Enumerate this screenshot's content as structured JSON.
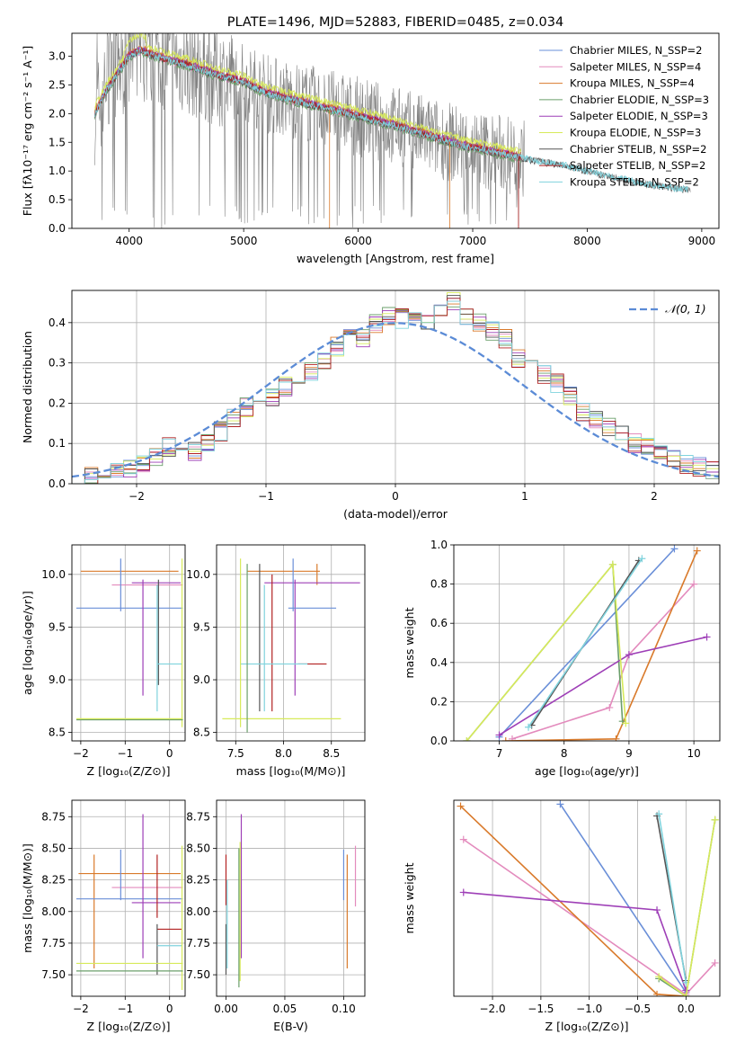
{
  "colors": {
    "chabrier_miles": "#6a8fd8",
    "salpeter_miles": "#e38bbd",
    "kroupa_miles": "#d97a2b",
    "chabrier_elodie": "#6b9f6b",
    "salpeter_elodie": "#9e3fb7",
    "kroupa_elodie": "#d7ea5a",
    "chabrier_stelib": "#555555",
    "salpeter_stelib": "#b22222",
    "kroupa_stelib": "#7fd3dd",
    "gaussian": "#5b8bd6",
    "data": "#808080"
  },
  "chart_data": [
    {
      "type": "line",
      "title": "PLATE=1496, MJD=52883, FIBERID=0485, z=0.034",
      "xlabel": "wavelength [Angstrom, rest frame]",
      "ylabel": "Flux [fλ10⁻¹⁷ erg cm⁻² s⁻¹ A⁻¹]",
      "xlim": [
        3500,
        9150
      ],
      "ylim": [
        0,
        3.4
      ],
      "xticks": [
        4000,
        5000,
        6000,
        7000,
        8000,
        9000
      ],
      "yticks": [
        0.0,
        0.5,
        1.0,
        1.5,
        2.0,
        2.5,
        3.0
      ],
      "grid": false,
      "legend_position": "top-right",
      "legend": [
        "Chabrier MILES, N_SSP=2",
        "Salpeter MILES, N_SSP=4",
        "Kroupa MILES, N_SSP=4",
        "Chabrier ELODIE, N_SSP=3",
        "Salpeter ELODIE, N_SSP=3",
        "Kroupa ELODIE, N_SSP=3",
        "Chabrier STELIB, N_SSP=2",
        "Salpeter STELIB, N_SSP=2",
        "Kroupa STELIB, N_SSP=2"
      ],
      "model_continuum": {
        "x": [
          3700,
          3800,
          3900,
          4000,
          4100,
          4300,
          4500,
          4800,
          5000,
          5200,
          5500,
          5800,
          6000,
          6300,
          6600,
          6900,
          7200,
          7500,
          7800,
          8100,
          8400,
          8700,
          8900
        ],
        "y": [
          2.0,
          2.4,
          2.7,
          3.0,
          3.1,
          2.95,
          2.85,
          2.65,
          2.55,
          2.35,
          2.2,
          2.05,
          1.95,
          1.8,
          1.62,
          1.45,
          1.32,
          1.2,
          1.1,
          0.95,
          0.82,
          0.72,
          0.67
        ]
      }
    },
    {
      "type": "line",
      "xlabel": "(data-model)/error",
      "ylabel": "Normed distribution",
      "xlim": [
        -2.5,
        2.5
      ],
      "ylim": [
        0,
        0.48
      ],
      "xticks": [
        -2,
        -1,
        0,
        1,
        2
      ],
      "yticks": [
        0.0,
        0.1,
        0.2,
        0.3,
        0.4
      ],
      "grid": true,
      "legend_position": "top-right",
      "legend": [
        "𝒩(0, 1)"
      ],
      "hist_bin_width": 0.1,
      "hist_start": -2.5,
      "hist_values": [
        0.02,
        0.02,
        0.03,
        0.04,
        0.04,
        0.05,
        0.07,
        0.09,
        0.09,
        0.08,
        0.1,
        0.13,
        0.16,
        0.19,
        0.2,
        0.21,
        0.24,
        0.27,
        0.28,
        0.31,
        0.34,
        0.38,
        0.36,
        0.4,
        0.42,
        0.41,
        0.43,
        0.4,
        0.44,
        0.45,
        0.42,
        0.4,
        0.38,
        0.36,
        0.31,
        0.3,
        0.27,
        0.25,
        0.22,
        0.18,
        0.16,
        0.14,
        0.12,
        0.1,
        0.09,
        0.07,
        0.06,
        0.05,
        0.04,
        0.03
      ]
    },
    {
      "type": "scatter",
      "xlabel": "Z [log₁₀(Z/Z⊙)]",
      "ylabel": "age  [log₁₀(age/yr)]",
      "xlim": [
        -2.2,
        0.35
      ],
      "ylim": [
        8.42,
        10.28
      ],
      "xticks": [
        -2,
        -1,
        0
      ],
      "yticks": [
        8.5,
        9.0,
        9.5,
        10.0
      ],
      "grid": true,
      "points": [
        {
          "model": "kroupa_miles",
          "x": -0.9,
          "xerr": 1.1,
          "y": 10.03,
          "yerr": 0.0
        },
        {
          "model": "salpeter_miles",
          "x": -0.5,
          "xerr": 0.8,
          "y": 9.9,
          "yerr": 0.0
        },
        {
          "model": "chabrier_miles",
          "x": -0.9,
          "xerr": 1.2,
          "y": 9.68,
          "yerr": 0.0
        },
        {
          "model": "chabrier_miles",
          "x": -1.1,
          "xerr": 0.0,
          "y": 9.9,
          "yerr": 0.25
        },
        {
          "model": "salpeter_elodie",
          "x": -0.3,
          "xerr": 0.55,
          "y": 9.92,
          "yerr": 0.0
        },
        {
          "model": "salpeter_elodie",
          "x": -0.6,
          "xerr": 0.0,
          "y": 9.4,
          "yerr": 0.55
        },
        {
          "model": "chabrier_stelib",
          "x": -0.25,
          "xerr": 0.0,
          "y": 9.45,
          "yerr": 0.5
        },
        {
          "model": "kroupa_stelib",
          "x": 0.0,
          "xerr": 0.28,
          "y": 9.15,
          "yerr": 0.0
        },
        {
          "model": "kroupa_stelib",
          "x": -0.28,
          "xerr": 0.0,
          "y": 9.3,
          "yerr": 0.6
        },
        {
          "model": "kroupa_elodie",
          "x": 0.28,
          "xerr": 0.0,
          "y": 9.35,
          "yerr": 0.8
        },
        {
          "model": "kroupa_elodie",
          "x": -0.9,
          "xerr": 1.2,
          "y": 8.63,
          "yerr": 0.0
        },
        {
          "model": "chabrier_elodie",
          "x": -0.9,
          "xerr": 1.2,
          "y": 8.62,
          "yerr": 0.0
        }
      ]
    },
    {
      "type": "scatter",
      "xlabel": "mass [log₁₀(M/M⊙)]",
      "xlim": [
        7.3,
        8.85
      ],
      "ylim": [
        8.42,
        10.28
      ],
      "xticks": [
        7.5,
        8.0,
        8.5
      ],
      "yticks": [
        8.5,
        9.0,
        9.5,
        10.0
      ],
      "grid": true,
      "points": [
        {
          "model": "kroupa_miles",
          "x": 8.0,
          "xerr": 0.38,
          "y": 10.03,
          "yerr": 0.0
        },
        {
          "model": "kroupa_miles",
          "x": 8.35,
          "xerr": 0.0,
          "y": 10.0,
          "yerr": 0.1
        },
        {
          "model": "salpeter_elodie",
          "x": 8.3,
          "xerr": 0.5,
          "y": 9.92,
          "yerr": 0.0
        },
        {
          "model": "salpeter_elodie",
          "x": 8.12,
          "xerr": 0.0,
          "y": 9.4,
          "yerr": 0.55
        },
        {
          "model": "chabrier_miles",
          "x": 8.3,
          "xerr": 0.25,
          "y": 9.68,
          "yerr": 0.0
        },
        {
          "model": "chabrier_miles",
          "x": 8.1,
          "xerr": 0.0,
          "y": 9.9,
          "yerr": 0.25
        },
        {
          "model": "salpeter_stelib",
          "x": 8.3,
          "xerr": 0.15,
          "y": 9.15,
          "yerr": 0.0
        },
        {
          "model": "salpeter_stelib",
          "x": 7.88,
          "xerr": 0.0,
          "y": 9.35,
          "yerr": 0.65
        },
        {
          "model": "chabrier_stelib",
          "x": 7.75,
          "xerr": 0.0,
          "y": 9.4,
          "yerr": 0.7
        },
        {
          "model": "kroupa_stelib",
          "x": 7.9,
          "xerr": 0.35,
          "y": 9.15,
          "yerr": 0.0
        },
        {
          "model": "kroupa_stelib",
          "x": 7.8,
          "xerr": 0.0,
          "y": 9.3,
          "yerr": 0.6
        },
        {
          "model": "kroupa_elodie",
          "x": 7.55,
          "xerr": 0.0,
          "y": 9.35,
          "yerr": 0.8
        },
        {
          "model": "kroupa_elodie",
          "x": 7.98,
          "xerr": 0.62,
          "y": 8.63,
          "yerr": 0.0
        },
        {
          "model": "chabrier_elodie",
          "x": 7.62,
          "xerr": 0.0,
          "y": 9.3,
          "yerr": 0.8
        }
      ]
    },
    {
      "type": "line",
      "xlabel": "age  [log₁₀(age/yr)]",
      "ylabel": "mass weight",
      "xlim": [
        6.3,
        10.4
      ],
      "ylim": [
        0,
        1.0
      ],
      "xticks": [
        7,
        8,
        9,
        10
      ],
      "yticks": [
        0.0,
        0.2,
        0.4,
        0.6,
        0.8,
        1.0
      ],
      "grid": true,
      "series": [
        {
          "model": "chabrier_miles",
          "x": [
            7.0,
            9.7
          ],
          "y": [
            0.02,
            0.98
          ]
        },
        {
          "model": "salpeter_miles",
          "x": [
            7.2,
            8.7,
            9.0,
            10.0
          ],
          "y": [
            0.01,
            0.17,
            0.44,
            0.8
          ]
        },
        {
          "model": "kroupa_miles",
          "x": [
            7.1,
            8.8,
            10.05
          ],
          "y": [
            0.0,
            0.01,
            0.97
          ]
        },
        {
          "model": "chabrier_elodie",
          "x": [
            6.5,
            8.75,
            8.9
          ],
          "y": [
            0.0,
            0.9,
            0.1
          ]
        },
        {
          "model": "salpeter_elodie",
          "x": [
            7.0,
            9.0,
            10.2
          ],
          "y": [
            0.03,
            0.44,
            0.53
          ]
        },
        {
          "model": "kroupa_elodie",
          "x": [
            6.5,
            8.75,
            8.95
          ],
          "y": [
            0.0,
            0.9,
            0.09
          ]
        },
        {
          "model": "chabrier_stelib",
          "x": [
            7.5,
            9.15
          ],
          "y": [
            0.08,
            0.92
          ]
        },
        {
          "model": "kroupa_stelib",
          "x": [
            7.45,
            9.2
          ],
          "y": [
            0.07,
            0.93
          ]
        }
      ]
    },
    {
      "type": "scatter",
      "xlabel": "Z [log₁₀(Z/Z⊙)]",
      "ylabel": "mass [log₁₀(M/M⊙)]",
      "xlim": [
        -2.2,
        0.35
      ],
      "ylim": [
        7.33,
        8.88
      ],
      "xticks": [
        -2,
        -1,
        0
      ],
      "yticks": [
        7.5,
        7.75,
        8.0,
        8.25,
        8.5,
        8.75
      ],
      "grid": true,
      "points": [
        {
          "model": "kroupa_miles",
          "x": -0.9,
          "xerr": 1.15,
          "y": 8.3,
          "yerr": 0.0
        },
        {
          "model": "kroupa_miles",
          "x": -1.7,
          "xerr": 0.0,
          "y": 8.0,
          "yerr": 0.45
        },
        {
          "model": "salpeter_miles",
          "x": -0.5,
          "xerr": 0.8,
          "y": 8.19,
          "yerr": 0.0
        },
        {
          "model": "chabrier_miles",
          "x": -0.9,
          "xerr": 1.2,
          "y": 8.1,
          "yerr": 0.0
        },
        {
          "model": "chabrier_miles",
          "x": -1.1,
          "xerr": 0.0,
          "y": 8.29,
          "yerr": 0.2
        },
        {
          "model": "salpeter_elodie",
          "x": -0.3,
          "xerr": 0.55,
          "y": 8.07,
          "yerr": 0.0
        },
        {
          "model": "salpeter_elodie",
          "x": -0.6,
          "xerr": 0.0,
          "y": 8.2,
          "yerr": 0.57
        },
        {
          "model": "salpeter_stelib",
          "x": 0.0,
          "xerr": 0.28,
          "y": 7.86,
          "yerr": 0.0
        },
        {
          "model": "salpeter_stelib",
          "x": -0.28,
          "xerr": 0.0,
          "y": 8.2,
          "yerr": 0.25
        },
        {
          "model": "chabrier_stelib",
          "x": -0.28,
          "xerr": 0.0,
          "y": 7.7,
          "yerr": 0.2
        },
        {
          "model": "kroupa_stelib",
          "x": 0.0,
          "xerr": 0.28,
          "y": 7.73,
          "yerr": 0.0
        },
        {
          "model": "kroupa_elodie",
          "x": 0.28,
          "xerr": 0.0,
          "y": 7.95,
          "yerr": 0.57
        },
        {
          "model": "kroupa_elodie",
          "x": -0.9,
          "xerr": 1.2,
          "y": 7.59,
          "yerr": 0.0
        },
        {
          "model": "chabrier_elodie",
          "x": -0.9,
          "xerr": 1.2,
          "y": 7.53,
          "yerr": 0.0
        }
      ]
    },
    {
      "type": "scatter",
      "xlabel": "E(B-V)",
      "xlim": [
        -0.008,
        0.118
      ],
      "ylim": [
        7.33,
        8.88
      ],
      "xticks": [
        0.0,
        0.05,
        0.1
      ],
      "yticks": [
        7.5,
        7.75,
        8.0,
        8.25,
        8.5,
        8.75
      ],
      "grid": true,
      "points": [
        {
          "model": "salpeter_stelib",
          "x": 0.0,
          "xerr": 0.0,
          "y": 8.25,
          "yerr": 0.2
        },
        {
          "model": "chabrier_stelib",
          "x": 0.0,
          "xerr": 0.0,
          "y": 7.7,
          "yerr": 0.2
        },
        {
          "model": "kroupa_stelib",
          "x": 0.001,
          "xerr": 0.0,
          "y": 7.9,
          "yerr": 0.35
        },
        {
          "model": "salpeter_elodie",
          "x": 0.013,
          "xerr": 0.0,
          "y": 8.2,
          "yerr": 0.57
        },
        {
          "model": "kroupa_elodie",
          "x": 0.012,
          "xerr": 0.0,
          "y": 8.0,
          "yerr": 0.55
        },
        {
          "model": "chabrier_elodie",
          "x": 0.011,
          "xerr": 0.0,
          "y": 7.95,
          "yerr": 0.55
        },
        {
          "model": "chabrier_miles",
          "x": 0.1,
          "xerr": 0.0,
          "y": 8.29,
          "yerr": 0.2
        },
        {
          "model": "kroupa_miles",
          "x": 0.103,
          "xerr": 0.0,
          "y": 8.0,
          "yerr": 0.45
        },
        {
          "model": "salpeter_miles",
          "x": 0.11,
          "xerr": 0.0,
          "y": 8.28,
          "yerr": 0.24
        }
      ]
    },
    {
      "type": "line",
      "xlabel": "Z [log₁₀(Z/Z⊙)]",
      "ylabel": "mass weight",
      "xlim": [
        -2.4,
        0.35
      ],
      "ylim": [
        0,
        1.0
      ],
      "xticks": [
        -2.0,
        -1.5,
        -1.0,
        -0.5,
        0.0
      ],
      "grid": true,
      "series": [
        {
          "model": "chabrier_miles",
          "x": [
            -1.3,
            0.0
          ],
          "y": [
            0.98,
            0.02
          ]
        },
        {
          "model": "salpeter_miles",
          "x": [
            -2.3,
            0.0,
            0.3
          ],
          "y": [
            0.8,
            0.01,
            0.17
          ]
        },
        {
          "model": "kroupa_miles",
          "x": [
            -2.33,
            -0.3,
            0.0
          ],
          "y": [
            0.97,
            0.01,
            0.0
          ]
        },
        {
          "model": "salpeter_elodie",
          "x": [
            -2.3,
            -0.3,
            0.0
          ],
          "y": [
            0.53,
            0.44,
            0.03
          ]
        },
        {
          "model": "chabrier_stelib",
          "x": [
            -0.3,
            0.0
          ],
          "y": [
            0.92,
            0.08
          ]
        },
        {
          "model": "kroupa_stelib",
          "x": [
            -0.28,
            0.0
          ],
          "y": [
            0.93,
            0.07
          ]
        },
        {
          "model": "chabrier_elodie",
          "x": [
            -0.28,
            0.0,
            0.3
          ],
          "y": [
            0.09,
            0.0,
            0.9
          ]
        },
        {
          "model": "kroupa_elodie",
          "x": [
            -0.28,
            0.0,
            0.3
          ],
          "y": [
            0.1,
            0.0,
            0.9
          ]
        }
      ]
    }
  ]
}
